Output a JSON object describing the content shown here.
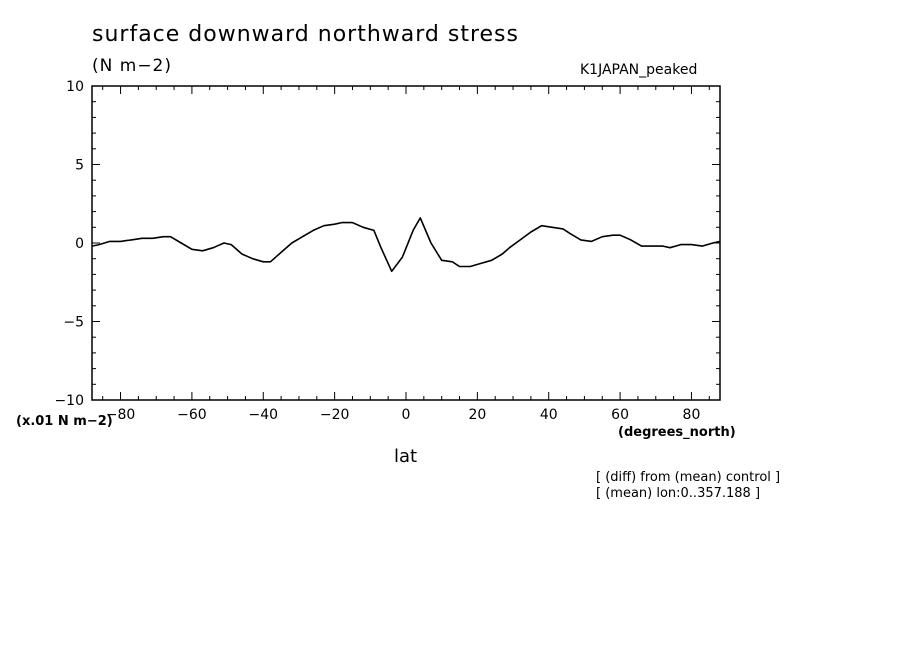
{
  "chart_data": {
    "type": "line",
    "title": "surface downward northward stress",
    "units_label": "(N m−2)",
    "experiment": "K1JAPAN_peaked",
    "scale_label": "(x.01 N m−2)",
    "xunits": "(degrees_north)",
    "xlabel": "lat",
    "notes": [
      "[ (diff) from (mean) control ]",
      "[ (mean) lon:0..357.188 ]"
    ],
    "xlim": [
      -88,
      88
    ],
    "ylim": [
      -10,
      10
    ],
    "xticks": [
      -80,
      -60,
      -40,
      -20,
      0,
      20,
      40,
      60,
      80
    ],
    "xtick_labels": [
      "−80",
      "−60",
      "−40",
      "−20",
      "0",
      "20",
      "40",
      "60",
      "80"
    ],
    "yticks": [
      -10,
      -5,
      0,
      5,
      10
    ],
    "ytick_labels": [
      "−10",
      "−5",
      "0",
      "5",
      "10"
    ],
    "line_color": "#000000",
    "series": [
      {
        "x": [
          -88,
          -86,
          -83,
          -80,
          -77,
          -74,
          -71,
          -68,
          -66,
          -63,
          -60,
          -57,
          -54,
          -51,
          -49,
          -46,
          -43,
          -40,
          -38,
          -35,
          -32,
          -29,
          -26,
          -23,
          -20,
          -18,
          -15,
          -12,
          -9,
          -7,
          -4,
          -1,
          2,
          4,
          7,
          10,
          13,
          15,
          18,
          21,
          24,
          27,
          29,
          32,
          35,
          38,
          41,
          44,
          46,
          49,
          52,
          55,
          58,
          60,
          63,
          66,
          69,
          72,
          74,
          77,
          80,
          83,
          86,
          88
        ],
        "y": [
          -0.2,
          -0.1,
          0.1,
          0.1,
          0.2,
          0.3,
          0.3,
          0.4,
          0.4,
          0.0,
          -0.4,
          -0.5,
          -0.3,
          0.0,
          -0.1,
          -0.7,
          -1.0,
          -1.2,
          -1.2,
          -0.6,
          0.0,
          0.4,
          0.8,
          1.1,
          1.2,
          1.3,
          1.3,
          1.0,
          0.8,
          -0.3,
          -1.8,
          -0.9,
          0.8,
          1.6,
          0.0,
          -1.1,
          -1.2,
          -1.5,
          -1.5,
          -1.3,
          -1.1,
          -0.7,
          -0.3,
          0.2,
          0.7,
          1.1,
          1.0,
          0.9,
          0.6,
          0.2,
          0.1,
          0.4,
          0.5,
          0.5,
          0.2,
          -0.2,
          -0.2,
          -0.2,
          -0.3,
          -0.1,
          -0.1,
          -0.2,
          0.0,
          0.1
        ]
      }
    ]
  }
}
